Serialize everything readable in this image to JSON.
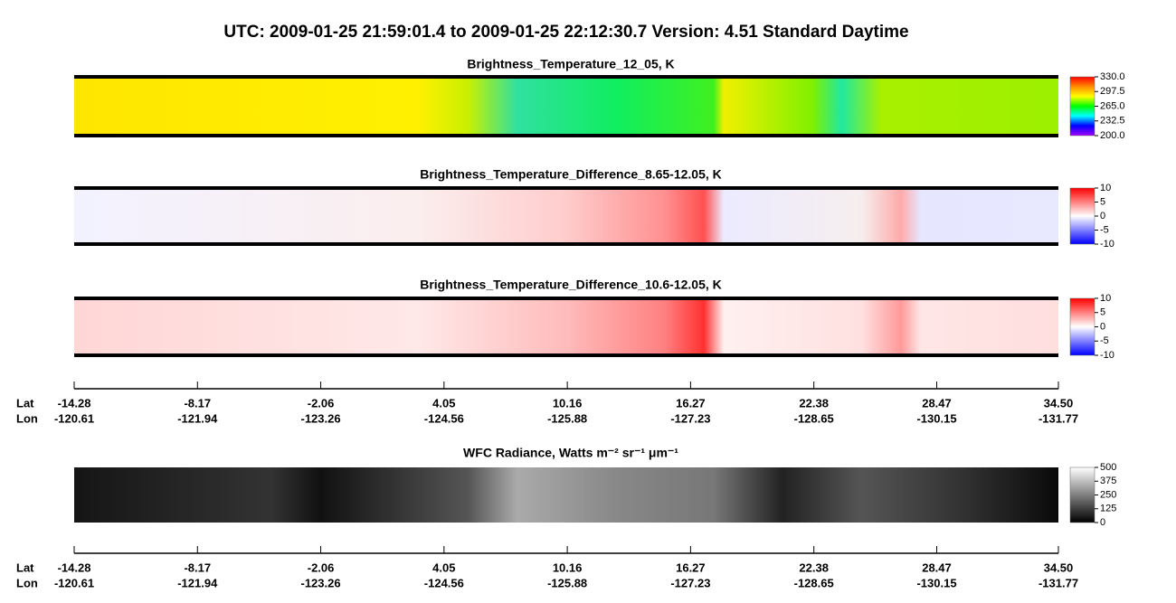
{
  "title": "UTC:  2009-01-25   21:59:01.4  to  2009-01-25   22:12:30.7    Version: 4.51  Standard Daytime",
  "chart_data": [
    {
      "type": "heatmap",
      "title": "Brightness_Temperature_12_05, K",
      "colors": [
        "#ff0000",
        "#ff8c00",
        "#ffff00",
        "#00ff00",
        "#00ffff",
        "#0000ff",
        "#a000ff"
      ],
      "clim": [
        {
          "value": 200,
          "label": "200.0"
        },
        {
          "value": 330,
          "label": "330.0"
        }
      ],
      "cticks": [
        {
          "value": 330,
          "label": "330.0"
        },
        297.5,
        {
          "value": 265,
          "label": "265.0"
        },
        232.5,
        {
          "value": 200,
          "label": "200.0"
        }
      ]
    },
    {
      "type": "heatmap",
      "title": "Brightness_Temperature_Difference_8.65-12.05, K",
      "colors": [
        "#ff0000",
        "#ffffff",
        "#0000ff"
      ],
      "clim": [
        -10,
        10
      ],
      "cticks": [
        10,
        5,
        0,
        -5,
        -10
      ]
    },
    {
      "type": "heatmap",
      "title": "Brightness_Temperature_Difference_10.6-12.05, K",
      "colors": [
        "#ff0000",
        "#ffffff",
        "#0000ff"
      ],
      "clim": [
        -10,
        10
      ],
      "cticks": [
        10,
        5,
        0,
        -5,
        -10
      ]
    },
    {
      "type": "heatmap",
      "title": "WFC Radiance, Watts m⁻² sr⁻¹ μm⁻¹",
      "colors": [
        "#ffffff",
        "#000000"
      ],
      "clim": [
        0,
        500
      ],
      "cticks": [
        500,
        375,
        250,
        125,
        0
      ]
    }
  ],
  "track_axis": {
    "lat_label": "Lat",
    "lon_label": "Lon",
    "lat": [
      -14.28,
      -8.17,
      -2.06,
      4.05,
      10.16,
      16.27,
      22.38,
      28.47,
      {
        "value": 34.5,
        "label": "34.50"
      }
    ],
    "lon": [
      -120.61,
      -121.94,
      -123.26,
      -124.56,
      -125.88,
      -127.23,
      -128.65,
      -130.15,
      -131.77
    ]
  }
}
